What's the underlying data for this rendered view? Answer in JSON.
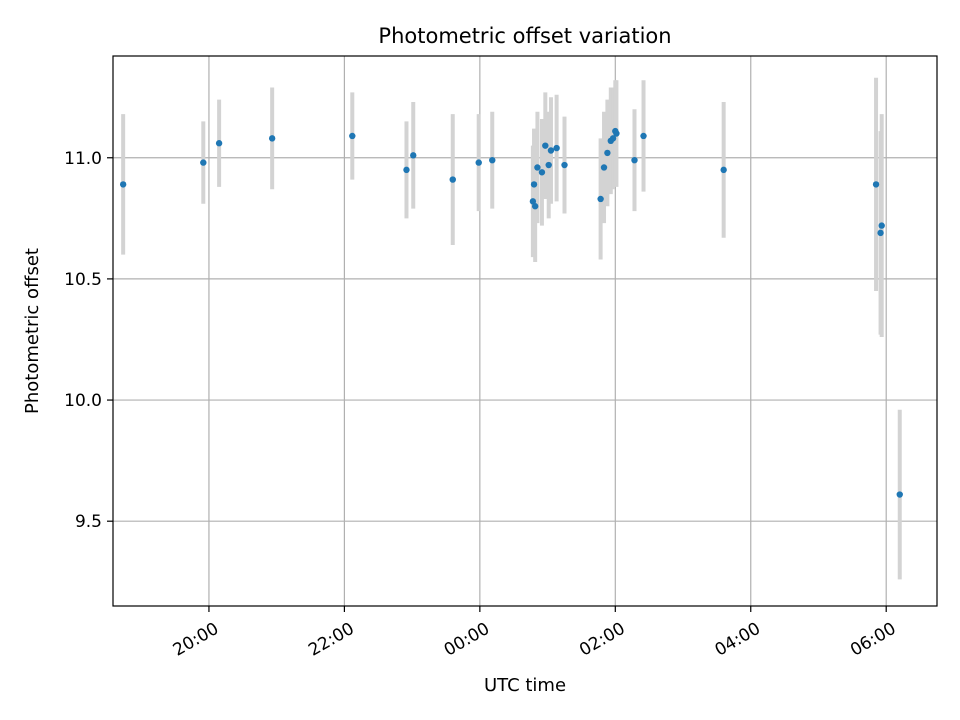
{
  "chart_data": {
    "type": "scatter",
    "title": "Photometric offset variation",
    "xlabel": "UTC time",
    "ylabel": "Photometric offset",
    "x_axis_kind": "time",
    "xlim": [
      "18:35",
      "06:45"
    ],
    "ylim": [
      9.15,
      11.42
    ],
    "x_ticks": [
      "20:00",
      "22:00",
      "00:00",
      "02:00",
      "04:00",
      "06:00"
    ],
    "y_ticks": [
      9.5,
      10.0,
      10.5,
      11.0
    ],
    "y_tick_labels": [
      "9.5",
      "10.0",
      "10.5",
      "11.0"
    ],
    "grid": true,
    "legend": "none",
    "marker_color": "#1f77b4",
    "errorbar_color": "#d3d3d3",
    "points": [
      {
        "time": "18:44",
        "y": 10.89,
        "err": 0.29
      },
      {
        "time": "19:55",
        "y": 10.98,
        "err": 0.17
      },
      {
        "time": "20:09",
        "y": 11.06,
        "err": 0.18
      },
      {
        "time": "20:56",
        "y": 11.08,
        "err": 0.21
      },
      {
        "time": "22:07",
        "y": 11.09,
        "err": 0.18
      },
      {
        "time": "22:55",
        "y": 10.95,
        "err": 0.2
      },
      {
        "time": "23:01",
        "y": 11.01,
        "err": 0.22
      },
      {
        "time": "23:36",
        "y": 10.91,
        "err": 0.27
      },
      {
        "time": "23:59",
        "y": 10.98,
        "err": 0.2
      },
      {
        "time": "00:11",
        "y": 10.99,
        "err": 0.2
      },
      {
        "time": "00:47",
        "y": 10.82,
        "err": 0.23
      },
      {
        "time": "00:48",
        "y": 10.89,
        "err": 0.23
      },
      {
        "time": "00:49",
        "y": 10.8,
        "err": 0.23
      },
      {
        "time": "00:51",
        "y": 10.96,
        "err": 0.23
      },
      {
        "time": "00:55",
        "y": 10.94,
        "err": 0.22
      },
      {
        "time": "00:58",
        "y": 11.05,
        "err": 0.22
      },
      {
        "time": "01:01",
        "y": 10.97,
        "err": 0.22
      },
      {
        "time": "01:03",
        "y": 11.03,
        "err": 0.22
      },
      {
        "time": "01:08",
        "y": 11.04,
        "err": 0.22
      },
      {
        "time": "01:15",
        "y": 10.97,
        "err": 0.2
      },
      {
        "time": "01:47",
        "y": 10.83,
        "err": 0.25
      },
      {
        "time": "01:50",
        "y": 10.96,
        "err": 0.23
      },
      {
        "time": "01:53",
        "y": 11.02,
        "err": 0.22
      },
      {
        "time": "01:56",
        "y": 11.07,
        "err": 0.22
      },
      {
        "time": "01:58",
        "y": 11.08,
        "err": 0.21
      },
      {
        "time": "02:00",
        "y": 11.11,
        "err": 0.21
      },
      {
        "time": "02:01",
        "y": 11.1,
        "err": 0.22
      },
      {
        "time": "02:17",
        "y": 10.99,
        "err": 0.21
      },
      {
        "time": "02:25",
        "y": 11.09,
        "err": 0.23
      },
      {
        "time": "03:36",
        "y": 10.95,
        "err": 0.28
      },
      {
        "time": "05:51",
        "y": 10.89,
        "err": 0.44
      },
      {
        "time": "05:55",
        "y": 10.69,
        "err": 0.42
      },
      {
        "time": "05:56",
        "y": 10.72,
        "err": 0.46
      },
      {
        "time": "06:12",
        "y": 9.61,
        "err": 0.35
      }
    ]
  }
}
